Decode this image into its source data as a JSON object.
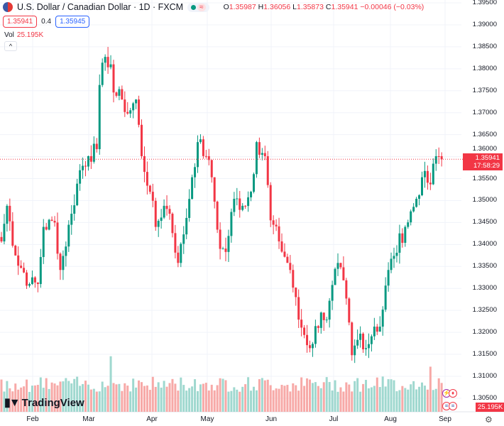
{
  "header": {
    "title": "U.S. Dollar / Canadian Dollar · 1D · FXCM",
    "status_eq": "≈",
    "ohlc": {
      "o_label": "O",
      "o": "1.35987",
      "h_label": "H",
      "h": "1.36056",
      "l_label": "L",
      "l": "1.35873",
      "c_label": "C",
      "c": "1.35941",
      "change": "−0.00046 (−0.03%)"
    },
    "bid": "1.35941",
    "spread": "0.4",
    "ask": "1.35945",
    "vol_label": "Vol",
    "vol_value": "25.195K",
    "collapse": "^"
  },
  "price_axis": {
    "labels": [
      "1.39500",
      "1.39000",
      "1.38500",
      "1.38000",
      "1.37500",
      "1.37000",
      "1.36500",
      "1.36000",
      "1.35500",
      "1.35000",
      "1.34500",
      "1.34000",
      "1.33500",
      "1.33000",
      "1.32500",
      "1.32000",
      "1.31500",
      "1.31000",
      "1.30500"
    ],
    "current_price": "1.35941",
    "countdown": "17:58:29",
    "volume_tag": "25.195K"
  },
  "time_axis": [
    "Feb",
    "Mar",
    "Apr",
    "May",
    "Jun",
    "Jul",
    "Aug",
    "Sep"
  ],
  "brand": "TradingView",
  "colors": {
    "up": "#089981",
    "down": "#f23645",
    "up_vol": "#9fd8cf",
    "down_vol": "#f7a9a7"
  },
  "chart_data": {
    "type": "candlestick",
    "symbol": "USDCAD",
    "interval": "1D",
    "ylim": [
      1.3035,
      1.3955
    ],
    "months": [
      "Feb",
      "Mar",
      "Apr",
      "May",
      "Jun",
      "Jul",
      "Aug",
      "Sep"
    ],
    "close_keypoints": [
      [
        0,
        1.3407
      ],
      [
        2,
        1.3488
      ],
      [
        5,
        1.3375
      ],
      [
        10,
        1.331
      ],
      [
        13,
        1.331
      ],
      [
        15,
        1.344
      ],
      [
        19,
        1.345
      ],
      [
        21,
        1.3342
      ],
      [
        25,
        1.347
      ],
      [
        28,
        1.3569
      ],
      [
        31,
        1.3601
      ],
      [
        34,
        1.3617
      ],
      [
        35,
        1.3763
      ],
      [
        37,
        1.3827
      ],
      [
        39,
        1.381
      ],
      [
        40,
        1.3746
      ],
      [
        43,
        1.373
      ],
      [
        45,
        1.3698
      ],
      [
        48,
        1.373
      ],
      [
        50,
        1.3601
      ],
      [
        53,
        1.352
      ],
      [
        55,
        1.344
      ],
      [
        58,
        1.3488
      ],
      [
        60,
        1.347
      ],
      [
        63,
        1.3358
      ],
      [
        65,
        1.3423
      ],
      [
        68,
        1.3553
      ],
      [
        70,
        1.3633
      ],
      [
        73,
        1.3601
      ],
      [
        75,
        1.3553
      ],
      [
        78,
        1.339
      ],
      [
        80,
        1.3383
      ],
      [
        83,
        1.3504
      ],
      [
        86,
        1.3488
      ],
      [
        89,
        1.352
      ],
      [
        91,
        1.3633
      ],
      [
        94,
        1.3601
      ],
      [
        96,
        1.3455
      ],
      [
        99,
        1.3407
      ],
      [
        103,
        1.3342
      ],
      [
        106,
        1.3229
      ],
      [
        110,
        1.3164
      ],
      [
        114,
        1.3245
      ],
      [
        116,
        1.3229
      ],
      [
        120,
        1.3358
      ],
      [
        123,
        1.3277
      ],
      [
        125,
        1.3148
      ],
      [
        128,
        1.3197
      ],
      [
        130,
        1.3164
      ],
      [
        133,
        1.3213
      ],
      [
        135,
        1.3213
      ],
      [
        138,
        1.3342
      ],
      [
        140,
        1.3374
      ],
      [
        144,
        1.344
      ],
      [
        148,
        1.3504
      ],
      [
        150,
        1.3553
      ],
      [
        153,
        1.3537
      ],
      [
        155,
        1.3601
      ],
      [
        157,
        1.3594
      ]
    ],
    "volume_spikes": [
      [
        39,
        2.2
      ],
      [
        153,
        1.9
      ]
    ]
  }
}
